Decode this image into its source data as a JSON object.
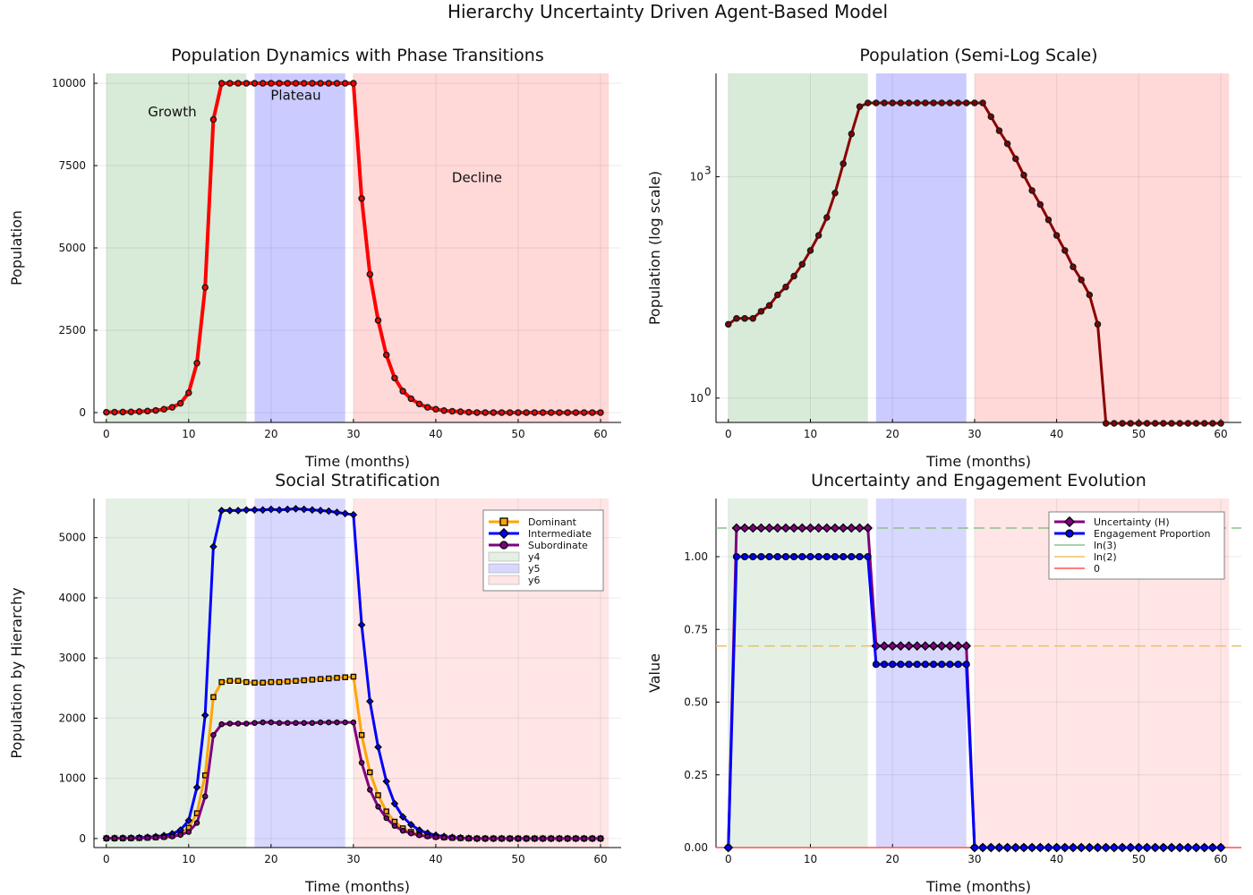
{
  "figure": {
    "title": "Hierarchy Uncertainty Driven Agent-Based Model"
  },
  "chart_data": [
    {
      "type": "line",
      "title": "Population Dynamics with Phase Transitions",
      "xlabel": "Time (months)",
      "ylabel": "Population",
      "xlim": [
        -1.5,
        62.5
      ],
      "ylim": [
        -300,
        10300
      ],
      "xticks": [
        0,
        10,
        20,
        30,
        40,
        50,
        60
      ],
      "yticks": [
        0,
        2500,
        5000,
        7500,
        10000
      ],
      "xtick_labels": [
        "0",
        "10",
        "20",
        "30",
        "40",
        "50",
        "60"
      ],
      "ytick_labels": [
        "0",
        "2500",
        "5000",
        "7500",
        "10000"
      ],
      "phases": [
        {
          "x0": 0,
          "x1": 17,
          "color": "#d8ead8"
        },
        {
          "x0": 18,
          "x1": 29,
          "color": "#cbcbff"
        },
        {
          "x0": 30,
          "x1": 61,
          "color": "#ffd8d8"
        }
      ],
      "annotations": [
        {
          "text": "Growth",
          "x": 8,
          "y": 9000
        },
        {
          "text": "Plateau",
          "x": 23,
          "y": 9500
        },
        {
          "text": "Decline",
          "x": 45,
          "y": 7000
        }
      ],
      "grid": true,
      "series": [
        {
          "color": "#ff0000",
          "values": [
            10,
            12,
            15,
            20,
            30,
            45,
            65,
            100,
            160,
            280,
            600,
            1500,
            3800,
            8900,
            10000,
            10000,
            10000,
            10000,
            10000,
            10000,
            10000,
            10000,
            10000,
            10000,
            10000,
            10000,
            10000,
            10000,
            10000,
            10000,
            10000,
            6500,
            4200,
            2800,
            1750,
            1050,
            650,
            420,
            260,
            160,
            100,
            60,
            40,
            25,
            10,
            0,
            0,
            0,
            0,
            0,
            0,
            0,
            0,
            0,
            0,
            0,
            0,
            0,
            0,
            0,
            0
          ]
        }
      ]
    },
    {
      "type": "line",
      "title": "Population (Semi-Log Scale)",
      "xlabel": "Time (months)",
      "ylabel": "Population (log scale)",
      "yscale": "log",
      "xlim": [
        -1.5,
        62.5
      ],
      "ylim_log10": [
        -0.33,
        4.4
      ],
      "xticks": [
        0,
        10,
        20,
        30,
        40,
        50,
        60
      ],
      "xtick_labels": [
        "0",
        "10",
        "20",
        "30",
        "40",
        "50",
        "60"
      ],
      "yticks": [
        1,
        1000
      ],
      "ytick_base": "10",
      "ytick_exponents": [
        "0",
        "3"
      ],
      "phases": [
        {
          "x0": 0,
          "x1": 17,
          "color": "#d8ead8"
        },
        {
          "x0": 18,
          "x1": 29,
          "color": "#cbcbff"
        },
        {
          "x0": 30,
          "x1": 61,
          "color": "#ffd8d8"
        }
      ],
      "grid": true,
      "series": [
        {
          "color": "#8b0000",
          "values": [
            10,
            12,
            12,
            12,
            15,
            18,
            25,
            32,
            45,
            65,
            100,
            160,
            280,
            600,
            1500,
            3800,
            8900,
            10000,
            10000,
            10000,
            10000,
            10000,
            10000,
            10000,
            10000,
            10000,
            10000,
            10000,
            10000,
            10000,
            10000,
            10000,
            6500,
            4200,
            2800,
            1750,
            1050,
            650,
            420,
            260,
            160,
            100,
            60,
            40,
            25,
            10,
            0,
            0,
            0,
            0,
            0,
            0,
            0,
            0,
            0,
            0,
            0,
            0,
            0,
            0,
            0
          ]
        }
      ]
    },
    {
      "type": "line",
      "title": "Social Stratification",
      "xlabel": "Time (months)",
      "ylabel": "Population by Hierarchy",
      "xlim": [
        -1.5,
        62.5
      ],
      "ylim": [
        -150,
        5650
      ],
      "xticks": [
        0,
        10,
        20,
        30,
        40,
        50,
        60
      ],
      "yticks": [
        0,
        1000,
        2000,
        3000,
        4000,
        5000
      ],
      "xtick_labels": [
        "0",
        "10",
        "20",
        "30",
        "40",
        "50",
        "60"
      ],
      "ytick_labels": [
        "0",
        "1000",
        "2000",
        "3000",
        "4000",
        "5000"
      ],
      "phases": [
        {
          "x0": 0,
          "x1": 17,
          "color": "#e5f0e5",
          "name": "y4"
        },
        {
          "x0": 18,
          "x1": 29,
          "color": "#d8d8ff",
          "name": "y5"
        },
        {
          "x0": 30,
          "x1": 61,
          "color": "#ffe5e5",
          "name": "y6"
        }
      ],
      "legend": "top-right",
      "grid": true,
      "series": [
        {
          "name": "Dominant",
          "color": "#ffa500",
          "marker": "square",
          "values": [
            3,
            4,
            5,
            6,
            9,
            14,
            20,
            30,
            50,
            85,
            180,
            420,
            1050,
            2350,
            2600,
            2620,
            2620,
            2600,
            2590,
            2590,
            2600,
            2600,
            2610,
            2620,
            2630,
            2640,
            2650,
            2660,
            2670,
            2680,
            2690,
            1720,
            1100,
            720,
            450,
            280,
            170,
            110,
            70,
            45,
            30,
            20,
            12,
            8,
            3,
            0,
            0,
            0,
            0,
            0,
            0,
            0,
            0,
            0,
            0,
            0,
            0,
            0,
            0,
            0,
            0
          ]
        },
        {
          "name": "Intermediate",
          "color": "#0000ff",
          "marker": "diamond",
          "values": [
            5,
            6,
            8,
            10,
            15,
            22,
            32,
            50,
            80,
            140,
            300,
            850,
            2050,
            4850,
            5450,
            5450,
            5450,
            5460,
            5460,
            5460,
            5470,
            5460,
            5470,
            5480,
            5470,
            5460,
            5450,
            5440,
            5420,
            5400,
            5380,
            3550,
            2280,
            1520,
            950,
            580,
            360,
            230,
            140,
            90,
            55,
            35,
            20,
            12,
            5,
            0,
            0,
            0,
            0,
            0,
            0,
            0,
            0,
            0,
            0,
            0,
            0,
            0,
            0,
            0,
            0
          ]
        },
        {
          "name": "Subordinate",
          "color": "#800080",
          "marker": "circle",
          "values": [
            2,
            3,
            4,
            5,
            7,
            10,
            15,
            22,
            35,
            60,
            110,
            260,
            700,
            1720,
            1900,
            1910,
            1910,
            1910,
            1920,
            1930,
            1930,
            1920,
            1920,
            1920,
            1920,
            1920,
            1930,
            1930,
            1930,
            1930,
            1930,
            1260,
            810,
            530,
            340,
            210,
            130,
            85,
            55,
            35,
            22,
            14,
            8,
            5,
            2,
            0,
            0,
            0,
            0,
            0,
            0,
            0,
            0,
            0,
            0,
            0,
            0,
            0,
            0,
            0,
            0
          ]
        }
      ]
    },
    {
      "type": "line",
      "title": "Uncertainty and Engagement Evolution",
      "xlabel": "Time (months)",
      "ylabel": "Value",
      "xlim": [
        -1.5,
        62.5
      ],
      "ylim": [
        0,
        1.2
      ],
      "xticks": [
        0,
        10,
        20,
        30,
        40,
        50,
        60
      ],
      "yticks": [
        0,
        0.25,
        0.5,
        0.75,
        1.0
      ],
      "xtick_labels": [
        "0",
        "10",
        "20",
        "30",
        "40",
        "50",
        "60"
      ],
      "ytick_labels": [
        "0.00",
        "0.25",
        "0.50",
        "0.75",
        "1.00"
      ],
      "phases": [
        {
          "x0": 0,
          "x1": 17,
          "color": "#e5f0e5"
        },
        {
          "x0": 18,
          "x1": 29,
          "color": "#d8d8ff"
        },
        {
          "x0": 30,
          "x1": 61,
          "color": "#ffe5e5"
        }
      ],
      "legend": "top-right",
      "grid": true,
      "series": [
        {
          "name": "Uncertainty (H)",
          "color": "#800080",
          "marker": "diamond",
          "values": [
            0,
            1.0986,
            1.0986,
            1.0986,
            1.0986,
            1.0986,
            1.0986,
            1.0986,
            1.0986,
            1.0986,
            1.0986,
            1.0986,
            1.0986,
            1.0986,
            1.0986,
            1.0986,
            1.0986,
            1.0986,
            0.6931,
            0.6931,
            0.6931,
            0.6931,
            0.6931,
            0.6931,
            0.6931,
            0.6931,
            0.6931,
            0.6931,
            0.6931,
            0.6931,
            0,
            0,
            0,
            0,
            0,
            0,
            0,
            0,
            0,
            0,
            0,
            0,
            0,
            0,
            0,
            0,
            0,
            0,
            0,
            0,
            0,
            0,
            0,
            0,
            0,
            0,
            0,
            0,
            0,
            0,
            0
          ]
        },
        {
          "name": "Engagement Proportion",
          "color": "#0000ff",
          "marker": "circle",
          "values": [
            0,
            1,
            1,
            1,
            1,
            1,
            1,
            1,
            1,
            1,
            1,
            1,
            1,
            1,
            1,
            1,
            1,
            1,
            0.63,
            0.63,
            0.63,
            0.63,
            0.63,
            0.63,
            0.63,
            0.63,
            0.63,
            0.63,
            0.63,
            0.63,
            0,
            0,
            0,
            0,
            0,
            0,
            0,
            0,
            0,
            0,
            0,
            0,
            0,
            0,
            0,
            0,
            0,
            0,
            0,
            0,
            0,
            0,
            0,
            0,
            0,
            0,
            0,
            0,
            0,
            0,
            0
          ]
        }
      ],
      "reference_lines": [
        {
          "name": "ln(3)",
          "y": 1.0986,
          "color": "#8cc08c"
        },
        {
          "name": "ln(2)",
          "y": 0.6931,
          "color": "#f0c060"
        },
        {
          "name": "0",
          "y": 0,
          "color": "#ff5050"
        }
      ]
    }
  ]
}
